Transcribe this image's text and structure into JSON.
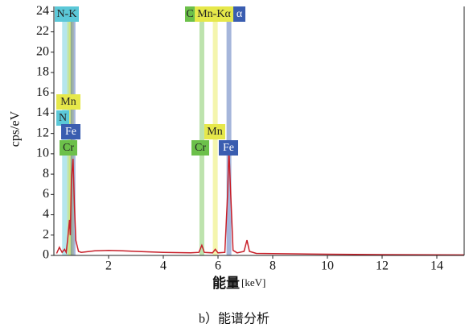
{
  "chart_data": {
    "type": "line",
    "ylabel": "cps/eV",
    "xlabel": "能量",
    "xunit": "[keV]",
    "caption": "b）能谱分析",
    "xlim": [
      0,
      15
    ],
    "ylim": [
      0,
      24.5
    ],
    "xticks": [
      2,
      4,
      6,
      8,
      10,
      12,
      14
    ],
    "yticks": [
      0,
      2,
      4,
      6,
      8,
      10,
      12,
      14,
      16,
      18,
      20,
      22,
      24
    ],
    "color": "#c8202a",
    "x": [
      0.1,
      0.2,
      0.3,
      0.39,
      0.45,
      0.5,
      0.57,
      0.6,
      0.64,
      0.7,
      0.75,
      0.8,
      0.9,
      1.0,
      1.5,
      2.0,
      2.5,
      3.0,
      3.5,
      4.0,
      4.5,
      5.0,
      5.3,
      5.41,
      5.5,
      5.8,
      5.9,
      6.0,
      6.25,
      6.35,
      6.4,
      6.45,
      6.55,
      6.7,
      6.95,
      7.06,
      7.15,
      7.4,
      8,
      9,
      10,
      11,
      12,
      13,
      14,
      15
    ],
    "values": [
      0.2,
      0.8,
      0.3,
      0.6,
      0.3,
      1.5,
      3.5,
      2,
      7.5,
      9.5,
      5,
      1.5,
      0.4,
      0.3,
      0.45,
      0.5,
      0.45,
      0.4,
      0.35,
      0.3,
      0.28,
      0.25,
      0.3,
      1.0,
      0.3,
      0.25,
      0.6,
      0.25,
      0.3,
      6,
      10.5,
      7,
      0.5,
      0.25,
      0.4,
      1.5,
      0.4,
      0.2,
      0.18,
      0.15,
      0.12,
      0.1,
      0.08,
      0.07,
      0.06,
      0.05
    ],
    "element_lines": [
      {
        "energy": 0.39,
        "color": "#5bc8d8"
      },
      {
        "energy": 0.57,
        "color": "#6cc04a"
      },
      {
        "energy": 0.64,
        "color": "#e6e84a"
      },
      {
        "energy": 0.7,
        "color": "#3a5db0"
      },
      {
        "energy": 5.41,
        "color": "#6cc04a"
      },
      {
        "energy": 5.9,
        "color": "#e6e84a"
      },
      {
        "energy": 6.4,
        "color": "#3a5db0"
      }
    ],
    "labels": [
      {
        "text": "N-K",
        "color": "#5bc8d8"
      },
      {
        "text": "C",
        "color": "#6cc04a"
      },
      {
        "text": "Mn-Kα",
        "color": "#e6e84a"
      },
      {
        "text": "α",
        "color": "#3a5db0"
      },
      {
        "text": "Mn",
        "color": "#e6e84a"
      },
      {
        "text": "N",
        "color": "#5bc8d8"
      },
      {
        "text": "Fe",
        "color": "#3a5db0"
      },
      {
        "text": "Cr",
        "color": "#6cc04a"
      },
      {
        "text": "Mn",
        "color": "#e6e84a"
      },
      {
        "text": "Cr",
        "color": "#6cc04a"
      },
      {
        "text": "Fe",
        "color": "#3a5db0"
      }
    ]
  }
}
